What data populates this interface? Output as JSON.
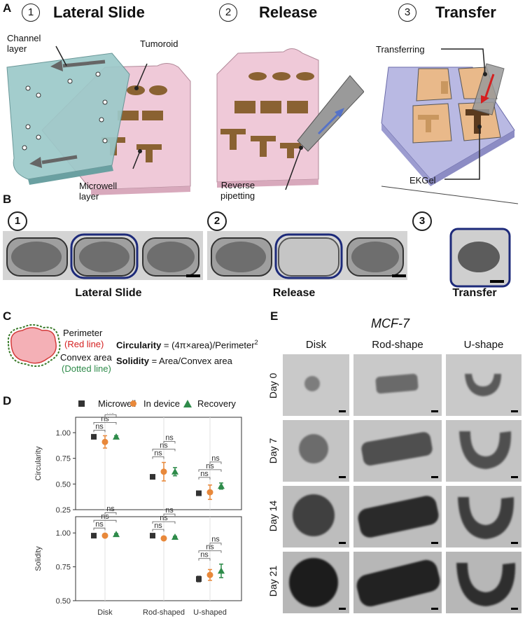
{
  "panel_a": {
    "letter": "A",
    "steps": [
      {
        "num": "1",
        "title": "Lateral Slide"
      },
      {
        "num": "2",
        "title": "Release"
      },
      {
        "num": "3",
        "title": "Transfer"
      }
    ],
    "labels": {
      "channel_layer": "Channel\nlayer",
      "tumoroid": "Tumoroid",
      "microwell_layer": "Microwell\nlayer",
      "reverse_pipetting": "Reverse\npipetting",
      "transferring": "Transferring",
      "ekgel": "EKGel"
    }
  },
  "panel_b": {
    "letter": "B",
    "steps": [
      "1",
      "2",
      "3"
    ],
    "captions": [
      "Lateral Slide",
      "Release",
      "Transfer"
    ]
  },
  "panel_c": {
    "letter": "C",
    "perimeter": "Perimeter",
    "red_line": "(Red line)",
    "convex_area": "Convex area",
    "dotted_line": "(Dotted line)",
    "circularity_label": "Circularity",
    "circularity_formula": " = (4π×area)/Perimeter",
    "circularity_sup": "2",
    "solidity_label": "Solidity",
    "solidity_formula": " = Area/Convex area"
  },
  "panel_d": {
    "letter": "D",
    "legend": [
      {
        "name": "Microwell",
        "color": "#333333",
        "marker": "square"
      },
      {
        "name": "In device",
        "color": "#e8883a",
        "marker": "circle"
      },
      {
        "name": "Recovery",
        "color": "#2e8b4a",
        "marker": "triangle"
      }
    ],
    "ns": "ns"
  },
  "chart_data": [
    {
      "type": "scatter",
      "ylabel": "Circularity",
      "categories": [
        "Disk",
        "Rod-shaped",
        "U-shaped"
      ],
      "ylim": [
        0.25,
        1.15
      ],
      "yticks": [
        "0.25",
        "0.50",
        "0.75",
        "1.00"
      ],
      "series": [
        {
          "name": "Microwell",
          "values": [
            0.96,
            0.57,
            0.41
          ],
          "err": [
            0.01,
            0.01,
            0.02
          ]
        },
        {
          "name": "In device",
          "values": [
            0.91,
            0.62,
            0.42
          ],
          "err": [
            0.06,
            0.09,
            0.07
          ]
        },
        {
          "name": "Recovery",
          "values": [
            0.96,
            0.62,
            0.48
          ],
          "err": [
            0.01,
            0.04,
            0.03
          ]
        }
      ]
    },
    {
      "type": "scatter",
      "ylabel": "Solidity",
      "categories": [
        "Disk",
        "Rod-shaped",
        "U-shaped"
      ],
      "ylim": [
        0.5,
        1.12
      ],
      "yticks": [
        "0.50",
        "0.75",
        "1.00"
      ],
      "series": [
        {
          "name": "Microwell",
          "values": [
            0.98,
            0.98,
            0.66
          ],
          "err": [
            0.005,
            0.005,
            0.02
          ]
        },
        {
          "name": "In device",
          "values": [
            0.98,
            0.96,
            0.69
          ],
          "err": [
            0.01,
            0.01,
            0.04
          ]
        },
        {
          "name": "Recovery",
          "values": [
            0.99,
            0.97,
            0.72
          ],
          "err": [
            0.005,
            0.005,
            0.05
          ]
        }
      ]
    }
  ],
  "panel_e": {
    "letter": "E",
    "title": "MCF-7",
    "columns": [
      "Disk",
      "Rod-shape",
      "U-shape"
    ],
    "rows": [
      "Day 0",
      "Day 7",
      "Day 14",
      "Day 21"
    ]
  }
}
